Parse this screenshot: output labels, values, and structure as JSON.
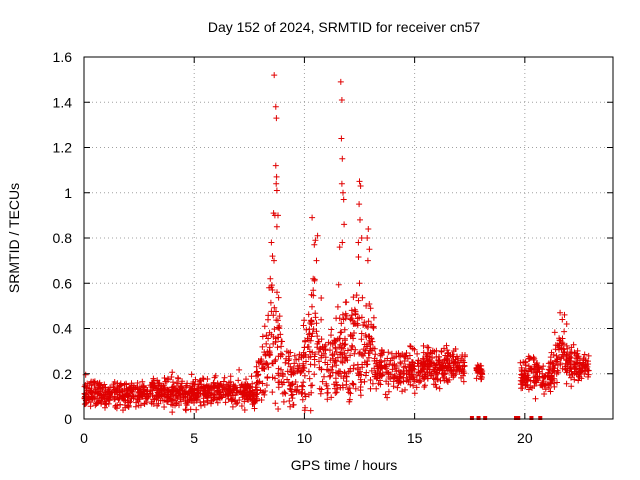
{
  "chart_data": {
    "type": "scatter",
    "title": "Day 152 of 2024, SRMTID for receiver cn57",
    "xlabel": "GPS time / hours",
    "ylabel": "SRMTID / TECUs",
    "xlim": [
      0,
      24
    ],
    "ylim": [
      0,
      1.6
    ],
    "xticks": [
      0,
      5,
      10,
      15,
      20
    ],
    "yticks": [
      0,
      0.2,
      0.4,
      0.6,
      0.8,
      1,
      1.2,
      1.4,
      1.6
    ],
    "ytick_labels": [
      "0",
      "0.2",
      "0.4",
      "0.6",
      "0.8",
      "1",
      "1.2",
      "1.4",
      "1.6"
    ],
    "grid": true,
    "marker_color": "#e00000",
    "marker": "plus",
    "series": [
      {
        "name": "SRMTID",
        "segments": [
          {
            "x_start": 0.0,
            "x_end": 7.8,
            "envelope": [
              [
                0,
                0.12,
                0.06
              ],
              [
                1,
                0.11,
                0.05
              ],
              [
                2,
                0.11,
                0.05
              ],
              [
                3,
                0.12,
                0.05
              ],
              [
                4,
                0.12,
                0.06
              ],
              [
                5,
                0.11,
                0.06
              ],
              [
                6,
                0.13,
                0.06
              ],
              [
                7,
                0.12,
                0.06
              ],
              [
                7.8,
                0.1,
                0.05
              ]
            ]
          },
          {
            "x_start": 7.8,
            "x_end": 13.2,
            "envelope": [
              [
                7.8,
                0.16,
                0.08
              ],
              [
                8.3,
                0.3,
                0.18
              ],
              [
                8.6,
                0.45,
                0.3
              ],
              [
                9.0,
                0.2,
                0.12
              ],
              [
                9.5,
                0.16,
                0.1
              ],
              [
                10.0,
                0.22,
                0.14
              ],
              [
                10.5,
                0.4,
                0.25
              ],
              [
                11.0,
                0.2,
                0.12
              ],
              [
                11.6,
                0.35,
                0.25
              ],
              [
                12.0,
                0.3,
                0.2
              ],
              [
                12.5,
                0.35,
                0.25
              ],
              [
                13.2,
                0.28,
                0.12
              ]
            ]
          },
          {
            "x_start": 13.2,
            "x_end": 17.3,
            "envelope": [
              [
                13.2,
                0.22,
                0.08
              ],
              [
                14.0,
                0.22,
                0.09
              ],
              [
                15.0,
                0.22,
                0.09
              ],
              [
                16.0,
                0.24,
                0.08
              ],
              [
                17.3,
                0.23,
                0.06
              ]
            ]
          },
          {
            "x_start": 17.8,
            "x_end": 18.1,
            "envelope": [
              [
                17.8,
                0.21,
                0.03
              ],
              [
                18.1,
                0.21,
                0.03
              ]
            ]
          },
          {
            "x_start": 19.8,
            "x_end": 22.9,
            "envelope": [
              [
                19.8,
                0.2,
                0.05
              ],
              [
                20.5,
                0.2,
                0.08
              ],
              [
                21.0,
                0.18,
                0.07
              ],
              [
                21.6,
                0.3,
                0.1
              ],
              [
                22.0,
                0.24,
                0.08
              ],
              [
                22.9,
                0.22,
                0.05
              ]
            ]
          }
        ],
        "peaks": [
          [
            8.63,
            1.52
          ],
          [
            8.7,
            1.38
          ],
          [
            8.73,
            1.33
          ],
          [
            8.7,
            1.12
          ],
          [
            8.74,
            1.07
          ],
          [
            8.72,
            1.04
          ],
          [
            8.75,
            1.01
          ],
          [
            8.6,
            0.91
          ],
          [
            8.66,
            0.9
          ],
          [
            8.8,
            0.9
          ],
          [
            8.75,
            0.85
          ],
          [
            8.5,
            0.78
          ],
          [
            8.62,
            0.7
          ],
          [
            8.55,
            0.72
          ],
          [
            8.45,
            0.62
          ],
          [
            8.4,
            0.58
          ],
          [
            10.35,
            0.89
          ],
          [
            10.6,
            0.81
          ],
          [
            10.5,
            0.79
          ],
          [
            10.45,
            0.77
          ],
          [
            10.55,
            0.7
          ],
          [
            10.4,
            0.62
          ],
          [
            11.65,
            1.49
          ],
          [
            11.7,
            1.41
          ],
          [
            11.68,
            1.24
          ],
          [
            11.72,
            1.15
          ],
          [
            11.7,
            1.04
          ],
          [
            11.75,
            1.0
          ],
          [
            11.78,
            0.97
          ],
          [
            11.8,
            0.86
          ],
          [
            11.72,
            0.78
          ],
          [
            11.6,
            0.76
          ],
          [
            12.5,
            1.05
          ],
          [
            12.55,
            1.03
          ],
          [
            12.48,
            0.95
          ],
          [
            12.52,
            0.88
          ],
          [
            12.6,
            0.8
          ],
          [
            12.45,
            0.78
          ],
          [
            12.9,
            0.84
          ],
          [
            12.85,
            0.8
          ],
          [
            12.95,
            0.75
          ],
          [
            12.88,
            0.7
          ],
          [
            12.5,
            0.6
          ],
          [
            12.8,
            0.5
          ],
          [
            21.6,
            0.47
          ],
          [
            21.8,
            0.46
          ],
          [
            21.7,
            0.44
          ],
          [
            21.9,
            0.42
          ]
        ]
      }
    ],
    "gap_marks_x": [
      17.6,
      17.9,
      18.2,
      19.6,
      19.7,
      20.3,
      20.7
    ]
  }
}
